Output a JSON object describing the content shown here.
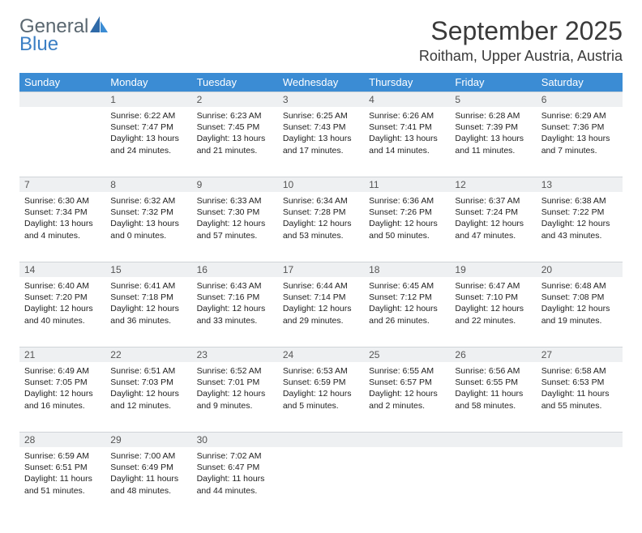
{
  "brand": {
    "general": "General",
    "blue": "Blue"
  },
  "title": "September 2025",
  "location": "Roitham, Upper Austria, Austria",
  "colors": {
    "header_bg": "#3b8cd4",
    "header_text": "#ffffff",
    "daynum_bg": "#eef0f2",
    "divider": "#d0d4d8",
    "body_text": "#222222",
    "logo_gray": "#5a6770",
    "logo_blue": "#3b7fc4"
  },
  "weekdays": [
    "Sunday",
    "Monday",
    "Tuesday",
    "Wednesday",
    "Thursday",
    "Friday",
    "Saturday"
  ],
  "weeks": [
    [
      null,
      {
        "n": "1",
        "sr": "Sunrise: 6:22 AM",
        "ss": "Sunset: 7:47 PM",
        "d1": "Daylight: 13 hours",
        "d2": "and 24 minutes."
      },
      {
        "n": "2",
        "sr": "Sunrise: 6:23 AM",
        "ss": "Sunset: 7:45 PM",
        "d1": "Daylight: 13 hours",
        "d2": "and 21 minutes."
      },
      {
        "n": "3",
        "sr": "Sunrise: 6:25 AM",
        "ss": "Sunset: 7:43 PM",
        "d1": "Daylight: 13 hours",
        "d2": "and 17 minutes."
      },
      {
        "n": "4",
        "sr": "Sunrise: 6:26 AM",
        "ss": "Sunset: 7:41 PM",
        "d1": "Daylight: 13 hours",
        "d2": "and 14 minutes."
      },
      {
        "n": "5",
        "sr": "Sunrise: 6:28 AM",
        "ss": "Sunset: 7:39 PM",
        "d1": "Daylight: 13 hours",
        "d2": "and 11 minutes."
      },
      {
        "n": "6",
        "sr": "Sunrise: 6:29 AM",
        "ss": "Sunset: 7:36 PM",
        "d1": "Daylight: 13 hours",
        "d2": "and 7 minutes."
      }
    ],
    [
      {
        "n": "7",
        "sr": "Sunrise: 6:30 AM",
        "ss": "Sunset: 7:34 PM",
        "d1": "Daylight: 13 hours",
        "d2": "and 4 minutes."
      },
      {
        "n": "8",
        "sr": "Sunrise: 6:32 AM",
        "ss": "Sunset: 7:32 PM",
        "d1": "Daylight: 13 hours",
        "d2": "and 0 minutes."
      },
      {
        "n": "9",
        "sr": "Sunrise: 6:33 AM",
        "ss": "Sunset: 7:30 PM",
        "d1": "Daylight: 12 hours",
        "d2": "and 57 minutes."
      },
      {
        "n": "10",
        "sr": "Sunrise: 6:34 AM",
        "ss": "Sunset: 7:28 PM",
        "d1": "Daylight: 12 hours",
        "d2": "and 53 minutes."
      },
      {
        "n": "11",
        "sr": "Sunrise: 6:36 AM",
        "ss": "Sunset: 7:26 PM",
        "d1": "Daylight: 12 hours",
        "d2": "and 50 minutes."
      },
      {
        "n": "12",
        "sr": "Sunrise: 6:37 AM",
        "ss": "Sunset: 7:24 PM",
        "d1": "Daylight: 12 hours",
        "d2": "and 47 minutes."
      },
      {
        "n": "13",
        "sr": "Sunrise: 6:38 AM",
        "ss": "Sunset: 7:22 PM",
        "d1": "Daylight: 12 hours",
        "d2": "and 43 minutes."
      }
    ],
    [
      {
        "n": "14",
        "sr": "Sunrise: 6:40 AM",
        "ss": "Sunset: 7:20 PM",
        "d1": "Daylight: 12 hours",
        "d2": "and 40 minutes."
      },
      {
        "n": "15",
        "sr": "Sunrise: 6:41 AM",
        "ss": "Sunset: 7:18 PM",
        "d1": "Daylight: 12 hours",
        "d2": "and 36 minutes."
      },
      {
        "n": "16",
        "sr": "Sunrise: 6:43 AM",
        "ss": "Sunset: 7:16 PM",
        "d1": "Daylight: 12 hours",
        "d2": "and 33 minutes."
      },
      {
        "n": "17",
        "sr": "Sunrise: 6:44 AM",
        "ss": "Sunset: 7:14 PM",
        "d1": "Daylight: 12 hours",
        "d2": "and 29 minutes."
      },
      {
        "n": "18",
        "sr": "Sunrise: 6:45 AM",
        "ss": "Sunset: 7:12 PM",
        "d1": "Daylight: 12 hours",
        "d2": "and 26 minutes."
      },
      {
        "n": "19",
        "sr": "Sunrise: 6:47 AM",
        "ss": "Sunset: 7:10 PM",
        "d1": "Daylight: 12 hours",
        "d2": "and 22 minutes."
      },
      {
        "n": "20",
        "sr": "Sunrise: 6:48 AM",
        "ss": "Sunset: 7:08 PM",
        "d1": "Daylight: 12 hours",
        "d2": "and 19 minutes."
      }
    ],
    [
      {
        "n": "21",
        "sr": "Sunrise: 6:49 AM",
        "ss": "Sunset: 7:05 PM",
        "d1": "Daylight: 12 hours",
        "d2": "and 16 minutes."
      },
      {
        "n": "22",
        "sr": "Sunrise: 6:51 AM",
        "ss": "Sunset: 7:03 PM",
        "d1": "Daylight: 12 hours",
        "d2": "and 12 minutes."
      },
      {
        "n": "23",
        "sr": "Sunrise: 6:52 AM",
        "ss": "Sunset: 7:01 PM",
        "d1": "Daylight: 12 hours",
        "d2": "and 9 minutes."
      },
      {
        "n": "24",
        "sr": "Sunrise: 6:53 AM",
        "ss": "Sunset: 6:59 PM",
        "d1": "Daylight: 12 hours",
        "d2": "and 5 minutes."
      },
      {
        "n": "25",
        "sr": "Sunrise: 6:55 AM",
        "ss": "Sunset: 6:57 PM",
        "d1": "Daylight: 12 hours",
        "d2": "and 2 minutes."
      },
      {
        "n": "26",
        "sr": "Sunrise: 6:56 AM",
        "ss": "Sunset: 6:55 PM",
        "d1": "Daylight: 11 hours",
        "d2": "and 58 minutes."
      },
      {
        "n": "27",
        "sr": "Sunrise: 6:58 AM",
        "ss": "Sunset: 6:53 PM",
        "d1": "Daylight: 11 hours",
        "d2": "and 55 minutes."
      }
    ],
    [
      {
        "n": "28",
        "sr": "Sunrise: 6:59 AM",
        "ss": "Sunset: 6:51 PM",
        "d1": "Daylight: 11 hours",
        "d2": "and 51 minutes."
      },
      {
        "n": "29",
        "sr": "Sunrise: 7:00 AM",
        "ss": "Sunset: 6:49 PM",
        "d1": "Daylight: 11 hours",
        "d2": "and 48 minutes."
      },
      {
        "n": "30",
        "sr": "Sunrise: 7:02 AM",
        "ss": "Sunset: 6:47 PM",
        "d1": "Daylight: 11 hours",
        "d2": "and 44 minutes."
      },
      null,
      null,
      null,
      null
    ]
  ]
}
